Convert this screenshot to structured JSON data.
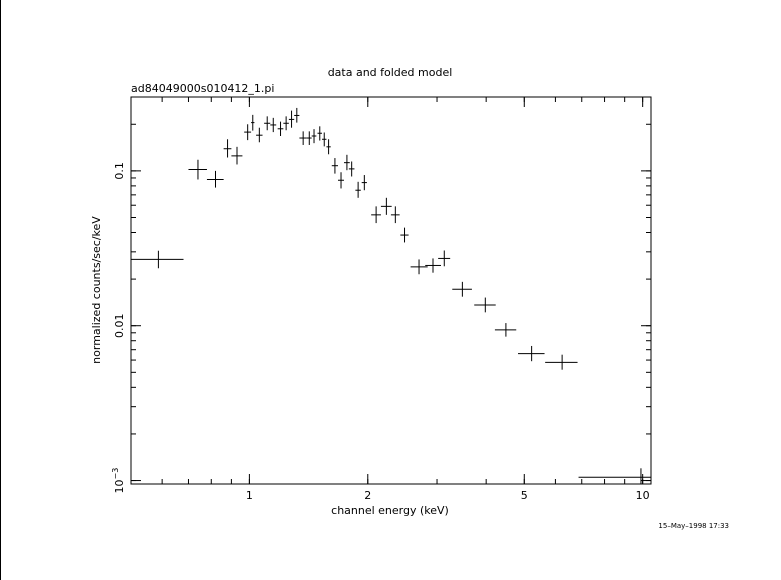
{
  "chart_data": {
    "type": "scatter",
    "title": "data and folded model",
    "subtitle": "ad84049000s010412_1.pi",
    "xlabel": "channel energy (keV)",
    "ylabel": "normalized counts/sec/keV",
    "xscale": "log",
    "yscale": "log",
    "xlim": [
      0.5,
      10.5
    ],
    "ylim": [
      0.00095,
      0.3
    ],
    "x_ticks": [
      {
        "value": 1,
        "label": "1"
      },
      {
        "value": 2,
        "label": "2"
      },
      {
        "value": 5,
        "label": "5"
      },
      {
        "value": 10,
        "label": "10"
      }
    ],
    "y_ticks": [
      {
        "value": 0.1,
        "label": "0.1"
      },
      {
        "value": 0.01,
        "label": "0.01"
      },
      {
        "value": 0.001,
        "label": "10",
        "sup": "−3"
      }
    ],
    "grid": false,
    "legend": "none",
    "points": [
      {
        "x": 0.587,
        "xlo": 0.5,
        "xhi": 0.68,
        "y": 0.0268,
        "ylo": 0.0235,
        "yhi": 0.0305
      },
      {
        "x": 0.74,
        "xlo": 0.7,
        "xhi": 0.78,
        "y": 0.102,
        "ylo": 0.088,
        "yhi": 0.118
      },
      {
        "x": 0.82,
        "xlo": 0.78,
        "xhi": 0.86,
        "y": 0.088,
        "ylo": 0.078,
        "yhi": 0.1
      },
      {
        "x": 0.88,
        "xlo": 0.86,
        "xhi": 0.9,
        "y": 0.139,
        "ylo": 0.122,
        "yhi": 0.16
      },
      {
        "x": 0.93,
        "xlo": 0.9,
        "xhi": 0.96,
        "y": 0.125,
        "ylo": 0.11,
        "yhi": 0.143
      },
      {
        "x": 0.99,
        "xlo": 0.97,
        "xhi": 1.01,
        "y": 0.178,
        "ylo": 0.158,
        "yhi": 0.2
      },
      {
        "x": 1.02,
        "xlo": 1.01,
        "xhi": 1.03,
        "y": 0.205,
        "ylo": 0.182,
        "yhi": 0.23
      },
      {
        "x": 1.06,
        "xlo": 1.04,
        "xhi": 1.08,
        "y": 0.17,
        "ylo": 0.153,
        "yhi": 0.19
      },
      {
        "x": 1.11,
        "xlo": 1.09,
        "xhi": 1.13,
        "y": 0.203,
        "ylo": 0.183,
        "yhi": 0.225
      },
      {
        "x": 1.15,
        "xlo": 1.13,
        "xhi": 1.17,
        "y": 0.198,
        "ylo": 0.178,
        "yhi": 0.22
      },
      {
        "x": 1.2,
        "xlo": 1.18,
        "xhi": 1.22,
        "y": 0.187,
        "ylo": 0.168,
        "yhi": 0.208
      },
      {
        "x": 1.24,
        "xlo": 1.22,
        "xhi": 1.26,
        "y": 0.203,
        "ylo": 0.183,
        "yhi": 0.225
      },
      {
        "x": 1.28,
        "xlo": 1.26,
        "xhi": 1.3,
        "y": 0.215,
        "ylo": 0.19,
        "yhi": 0.245
      },
      {
        "x": 1.32,
        "xlo": 1.3,
        "xhi": 1.34,
        "y": 0.228,
        "ylo": 0.205,
        "yhi": 0.255
      },
      {
        "x": 1.37,
        "xlo": 1.34,
        "xhi": 1.4,
        "y": 0.163,
        "ylo": 0.147,
        "yhi": 0.18
      },
      {
        "x": 1.42,
        "xlo": 1.4,
        "xhi": 1.44,
        "y": 0.163,
        "ylo": 0.147,
        "yhi": 0.18
      },
      {
        "x": 1.46,
        "xlo": 1.44,
        "xhi": 1.48,
        "y": 0.168,
        "ylo": 0.151,
        "yhi": 0.186
      },
      {
        "x": 1.51,
        "xlo": 1.49,
        "xhi": 1.53,
        "y": 0.175,
        "ylo": 0.157,
        "yhi": 0.194
      },
      {
        "x": 1.55,
        "xlo": 1.53,
        "xhi": 1.57,
        "y": 0.16,
        "ylo": 0.144,
        "yhi": 0.177
      },
      {
        "x": 1.59,
        "xlo": 1.57,
        "xhi": 1.61,
        "y": 0.143,
        "ylo": 0.128,
        "yhi": 0.16
      },
      {
        "x": 1.65,
        "xlo": 1.62,
        "xhi": 1.68,
        "y": 0.108,
        "ylo": 0.096,
        "yhi": 0.121
      },
      {
        "x": 1.71,
        "xlo": 1.68,
        "xhi": 1.74,
        "y": 0.087,
        "ylo": 0.077,
        "yhi": 0.098
      },
      {
        "x": 1.77,
        "xlo": 1.74,
        "xhi": 1.8,
        "y": 0.113,
        "ylo": 0.101,
        "yhi": 0.127
      },
      {
        "x": 1.82,
        "xlo": 1.79,
        "xhi": 1.85,
        "y": 0.103,
        "ylo": 0.092,
        "yhi": 0.115
      },
      {
        "x": 1.89,
        "xlo": 1.86,
        "xhi": 1.92,
        "y": 0.075,
        "ylo": 0.067,
        "yhi": 0.085
      },
      {
        "x": 1.96,
        "xlo": 1.93,
        "xhi": 1.99,
        "y": 0.084,
        "ylo": 0.075,
        "yhi": 0.094
      },
      {
        "x": 2.1,
        "xlo": 2.04,
        "xhi": 2.16,
        "y": 0.052,
        "ylo": 0.046,
        "yhi": 0.059
      },
      {
        "x": 2.23,
        "xlo": 2.16,
        "xhi": 2.3,
        "y": 0.059,
        "ylo": 0.052,
        "yhi": 0.067
      },
      {
        "x": 2.35,
        "xlo": 2.29,
        "xhi": 2.41,
        "y": 0.052,
        "ylo": 0.046,
        "yhi": 0.059
      },
      {
        "x": 2.48,
        "xlo": 2.42,
        "xhi": 2.54,
        "y": 0.0385,
        "ylo": 0.0345,
        "yhi": 0.043
      },
      {
        "x": 2.7,
        "xlo": 2.57,
        "xhi": 2.84,
        "y": 0.024,
        "ylo": 0.0215,
        "yhi": 0.0268
      },
      {
        "x": 2.93,
        "xlo": 2.8,
        "xhi": 3.07,
        "y": 0.0245,
        "ylo": 0.022,
        "yhi": 0.0272
      },
      {
        "x": 3.13,
        "xlo": 3.02,
        "xhi": 3.24,
        "y": 0.0272,
        "ylo": 0.0242,
        "yhi": 0.0306
      },
      {
        "x": 3.48,
        "xlo": 3.28,
        "xhi": 3.68,
        "y": 0.0172,
        "ylo": 0.0154,
        "yhi": 0.0192
      },
      {
        "x": 3.98,
        "xlo": 3.73,
        "xhi": 4.23,
        "y": 0.0136,
        "ylo": 0.0122,
        "yhi": 0.0152
      },
      {
        "x": 4.49,
        "xlo": 4.21,
        "xhi": 4.77,
        "y": 0.0094,
        "ylo": 0.0085,
        "yhi": 0.0104
      },
      {
        "x": 5.22,
        "xlo": 4.82,
        "xhi": 5.63,
        "y": 0.0066,
        "ylo": 0.0059,
        "yhi": 0.0074
      },
      {
        "x": 6.24,
        "xlo": 5.65,
        "xhi": 6.83,
        "y": 0.0058,
        "ylo": 0.0052,
        "yhi": 0.0065
      },
      {
        "x": 9.9,
        "xlo": 6.87,
        "xhi": 10.5,
        "y": 0.00105,
        "ylo": 0.00095,
        "yhi": 0.0012
      }
    ]
  },
  "footer": {
    "timestamp": "15–May–1998 17:33"
  }
}
